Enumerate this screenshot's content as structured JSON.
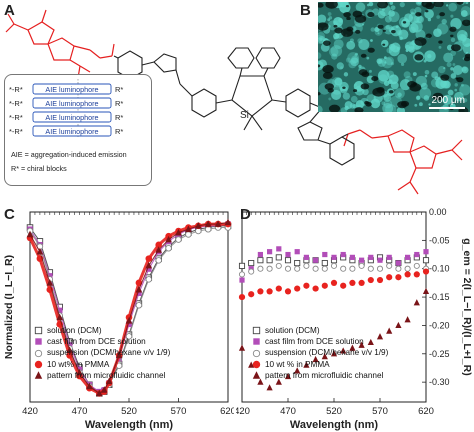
{
  "figure": {
    "panel_a": "A",
    "panel_b": "B",
    "panel_c": "C",
    "panel_d": "D"
  },
  "structure": {
    "si_label": "Si",
    "legend_lines": [
      {
        "left": "*-R*",
        "right": "R*",
        "label": "AIE luminophore"
      },
      {
        "left": "*-R*",
        "right": "R*",
        "label": "AIE luminophore"
      },
      {
        "left": "*-R*",
        "right": "R*",
        "label": "AIE luminophore"
      },
      {
        "left": "*-R*",
        "right": "R*",
        "label": "AIE luminophore"
      }
    ],
    "definition_aie": "AIE = aggregation-induced emission",
    "definition_r": "R* = chiral blocks"
  },
  "micrograph": {
    "scale_label": "200 μm",
    "colors": {
      "background": "#0c1f1c",
      "fluorescence": "#5fd6c8"
    }
  },
  "legend_entries": [
    {
      "label": "solution (DCM)",
      "marker": "open-square",
      "color": "#444444"
    },
    {
      "label": "cast film from DCE solution",
      "marker": "filled-square",
      "color": "#b24db8"
    },
    {
      "label": "suspension (DCM/hexane v/v 1/9)",
      "marker": "open-circle",
      "color": "#8a8a8a"
    },
    {
      "label": "10 wt% in PMMA",
      "marker": "filled-circle",
      "color": "#e8231f"
    },
    {
      "label": "pattern from microfluidic channel",
      "marker": "filled-triangle",
      "color": "#7a1418"
    }
  ],
  "legend_entries_d": [
    "solution (DCM)",
    "cast film from DCE solution",
    "suspension (DCM/hexane v/v 1/9)",
    "10 wt % in PMMA",
    "pattern from microfluidic channel"
  ],
  "chart_data": [
    {
      "type": "scatter",
      "panel": "C",
      "xlabel": "Wavelength (nm)",
      "ylabel": "Normalized (I_L−I_R)",
      "xlim": [
        420,
        620
      ],
      "x_ticks": [
        420,
        470,
        520,
        570,
        620
      ],
      "x_tick_labels": [
        "420",
        "470",
        "520",
        "570",
        "620"
      ],
      "ylim": [
        -1.05,
        0.05
      ],
      "y_ticks": [],
      "grid": false,
      "legend_position": "bottom-left",
      "x": [
        420,
        430,
        440,
        450,
        460,
        470,
        480,
        490,
        495,
        500,
        510,
        520,
        530,
        540,
        550,
        560,
        570,
        580,
        590,
        600,
        610,
        620
      ],
      "series": [
        {
          "name": "solution (DCM)",
          "values": [
            -0.04,
            -0.12,
            -0.3,
            -0.5,
            -0.7,
            -0.85,
            -0.95,
            -1.0,
            -0.99,
            -0.95,
            -0.83,
            -0.66,
            -0.48,
            -0.33,
            -0.22,
            -0.15,
            -0.1,
            -0.07,
            -0.05,
            -0.04,
            -0.03,
            -0.03
          ]
        },
        {
          "name": "cast film from DCE solution",
          "values": [
            -0.05,
            -0.14,
            -0.32,
            -0.52,
            -0.72,
            -0.86,
            -0.95,
            -0.99,
            -0.98,
            -0.94,
            -0.8,
            -0.6,
            -0.42,
            -0.28,
            -0.18,
            -0.12,
            -0.08,
            -0.05,
            -0.04,
            -0.03,
            -0.03,
            -0.02
          ]
        },
        {
          "name": "suspension (DCM/hexane v/v 1/9)",
          "values": [
            -0.06,
            -0.15,
            -0.34,
            -0.55,
            -0.74,
            -0.88,
            -0.96,
            -1.0,
            -0.99,
            -0.95,
            -0.84,
            -0.67,
            -0.49,
            -0.34,
            -0.23,
            -0.16,
            -0.11,
            -0.08,
            -0.06,
            -0.05,
            -0.04,
            -0.04
          ]
        },
        {
          "name": "10 wt% in PMMA",
          "values": [
            -0.1,
            -0.22,
            -0.4,
            -0.6,
            -0.78,
            -0.9,
            -0.97,
            -1.0,
            -0.99,
            -0.94,
            -0.78,
            -0.56,
            -0.36,
            -0.22,
            -0.14,
            -0.09,
            -0.06,
            -0.04,
            -0.03,
            -0.02,
            -0.02,
            -0.02
          ]
        },
        {
          "name": "pattern from microfluidic channel",
          "values": [
            -0.08,
            -0.18,
            -0.36,
            -0.56,
            -0.75,
            -0.88,
            -0.96,
            -1.0,
            -0.98,
            -0.93,
            -0.78,
            -0.58,
            -0.4,
            -0.26,
            -0.17,
            -0.11,
            -0.07,
            -0.05,
            -0.03,
            -0.02,
            -0.02,
            -0.01
          ]
        }
      ]
    },
    {
      "type": "scatter",
      "panel": "D",
      "xlabel": "Wavelength (nm)",
      "ylabel": "g_em = 2(I_L−I_R)/(I_L+I_R)",
      "xlim": [
        420,
        620
      ],
      "x_ticks": [
        420,
        470,
        520,
        570,
        620
      ],
      "x_tick_labels": [
        "420",
        "470",
        "520",
        "570",
        "620"
      ],
      "ylim": [
        -0.335,
        0.0
      ],
      "y_ticks": [
        0.0,
        -0.05,
        -0.1,
        -0.15,
        -0.2,
        -0.25,
        -0.3
      ],
      "y_tick_labels": [
        "0.00",
        "-0.05",
        "-0.10",
        "-0.15",
        "-0.20",
        "-0.25",
        "-0.30"
      ],
      "grid": false,
      "legend_position": "bottom-left",
      "x": [
        420,
        430,
        440,
        450,
        460,
        470,
        480,
        490,
        500,
        510,
        520,
        530,
        540,
        550,
        560,
        570,
        580,
        590,
        600,
        610,
        620
      ],
      "series": [
        {
          "name": "solution (DCM)",
          "values": [
            -0.095,
            -0.09,
            -0.085,
            -0.085,
            -0.08,
            -0.085,
            -0.09,
            -0.085,
            -0.085,
            -0.09,
            -0.085,
            -0.08,
            -0.085,
            -0.09,
            -0.085,
            -0.08,
            -0.085,
            -0.09,
            -0.085,
            -0.08,
            -0.085
          ]
        },
        {
          "name": "cast film from DCE solution",
          "values": [
            -0.12,
            -0.1,
            -0.075,
            -0.07,
            -0.065,
            -0.075,
            -0.07,
            -0.08,
            -0.085,
            -0.075,
            -0.08,
            -0.075,
            -0.08,
            -0.085,
            -0.08,
            -0.085,
            -0.08,
            -0.09,
            -0.08,
            -0.075,
            -0.07
          ]
        },
        {
          "name": "suspension (DCM/hexane v/v 1/9)",
          "values": [
            -0.11,
            -0.105,
            -0.1,
            -0.1,
            -0.095,
            -0.1,
            -0.1,
            -0.095,
            -0.1,
            -0.1,
            -0.095,
            -0.1,
            -0.1,
            -0.095,
            -0.1,
            -0.1,
            -0.095,
            -0.1,
            -0.1,
            -0.095,
            -0.1
          ]
        },
        {
          "name": "10 wt % in PMMA",
          "values": [
            -0.15,
            -0.145,
            -0.14,
            -0.14,
            -0.135,
            -0.14,
            -0.135,
            -0.13,
            -0.135,
            -0.13,
            -0.125,
            -0.13,
            -0.125,
            -0.125,
            -0.12,
            -0.12,
            -0.115,
            -0.115,
            -0.11,
            -0.11,
            -0.105
          ]
        },
        {
          "name": "pattern from microfluidic channel",
          "values": [
            -0.24,
            -0.27,
            -0.3,
            -0.31,
            -0.3,
            -0.29,
            -0.28,
            -0.27,
            -0.26,
            -0.255,
            -0.25,
            -0.245,
            -0.24,
            -0.235,
            -0.23,
            -0.22,
            -0.21,
            -0.2,
            -0.19,
            -0.16,
            -0.14
          ]
        }
      ]
    }
  ]
}
